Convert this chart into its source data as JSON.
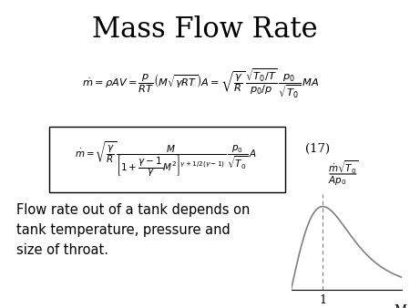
{
  "title": "Mass Flow Rate",
  "title_fontsize": 22,
  "bg_color": "#ffffff",
  "eq_number": "(17)",
  "annotation_text": "Flow rate out of a tank depends on\ntank temperature, pressure and\nsize of throat.",
  "annotation_fontsize": 10.5,
  "graph_ylabel_top": "$\\dot{m}\\sqrt{T_0}$",
  "graph_ylabel_bottom": "$Ap_0$",
  "graph_xlabel": "M",
  "graph_xtick": "1"
}
